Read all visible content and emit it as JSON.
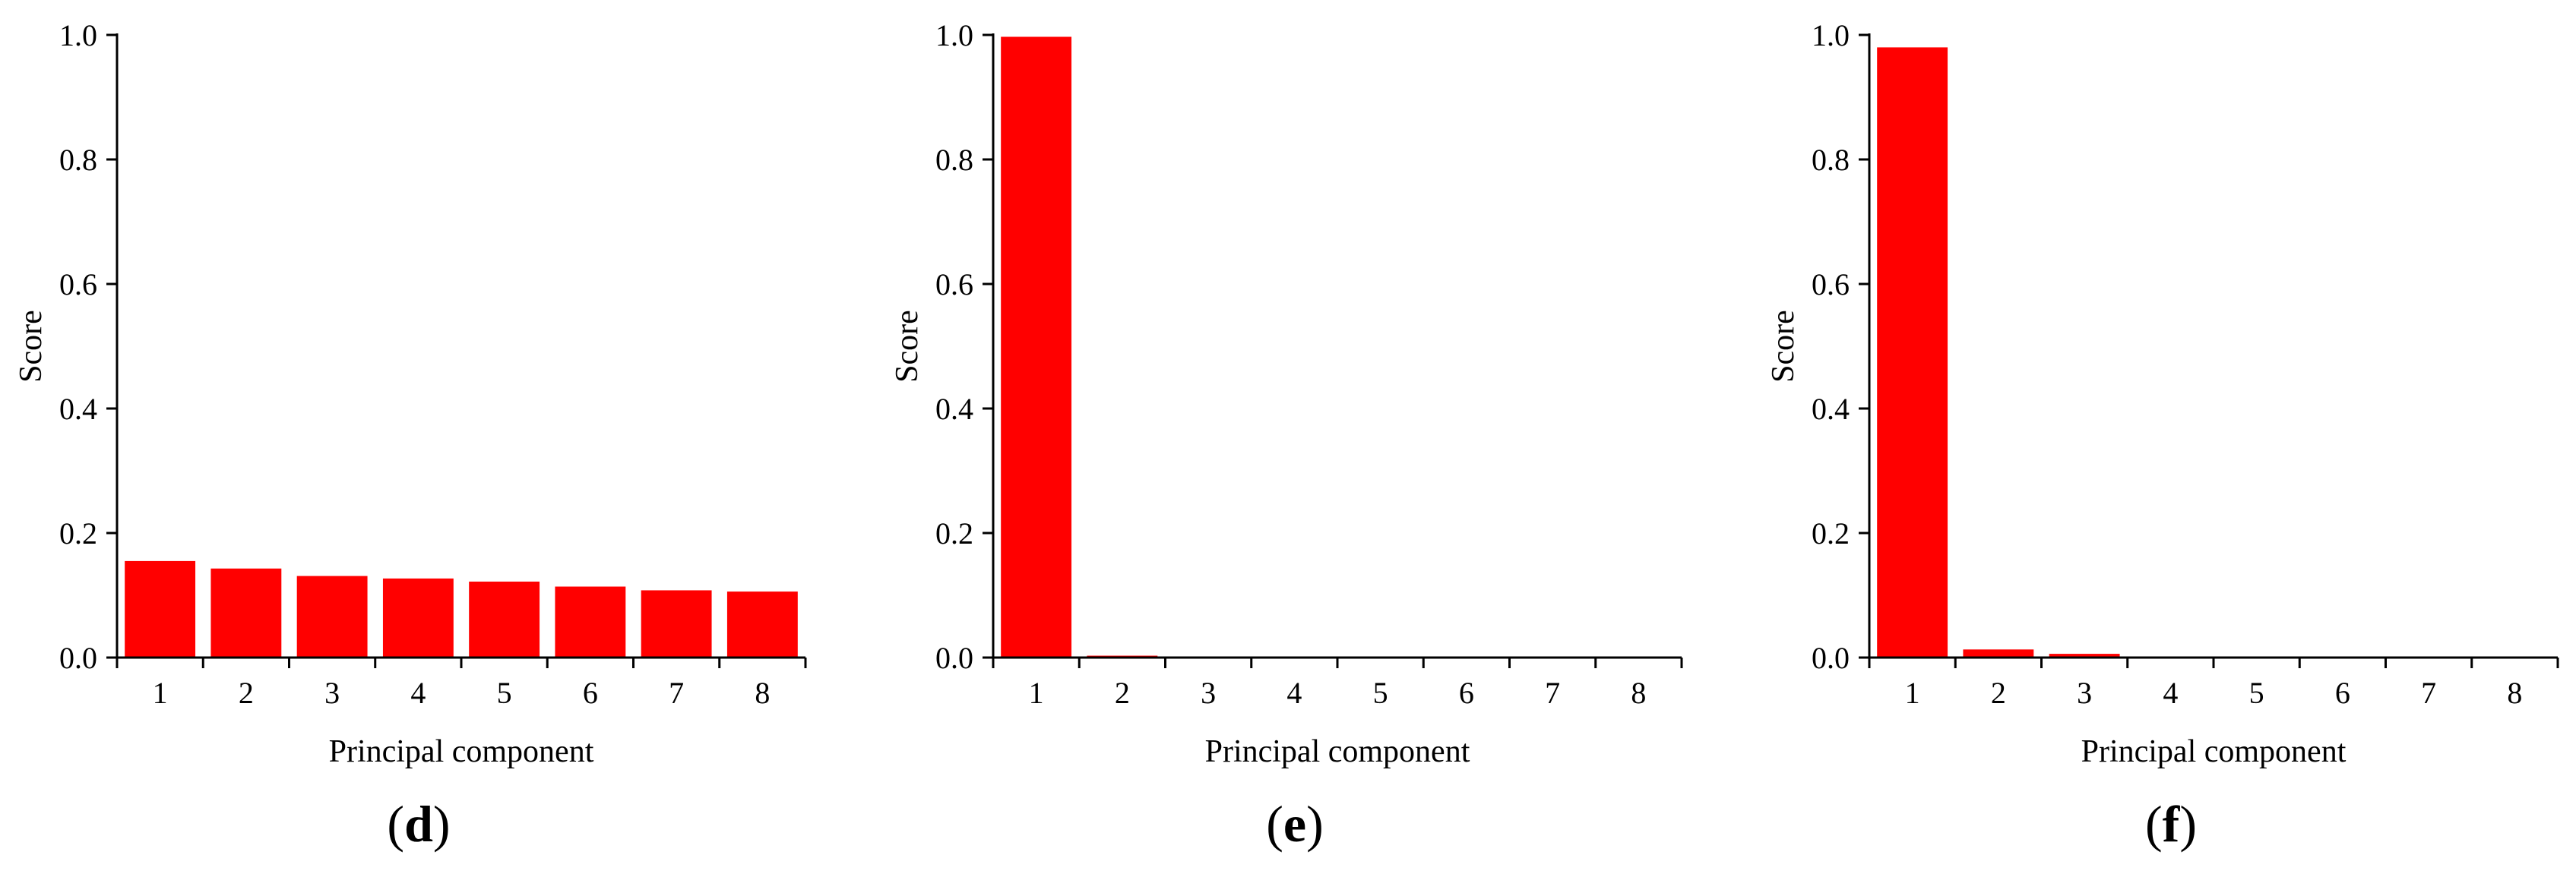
{
  "colors": {
    "bar": "#ff0000",
    "axis": "#000000",
    "background": "#ffffff"
  },
  "chart_data": [
    {
      "type": "bar",
      "panel_label": {
        "open": "(",
        "letter": "d",
        "close": ")"
      },
      "xlabel": "Principal component",
      "ylabel": "Score",
      "ylim": [
        0,
        1.0
      ],
      "yticks": [
        "0.0",
        "0.2",
        "0.4",
        "0.6",
        "0.8",
        "1.0"
      ],
      "categories": [
        "1",
        "2",
        "3",
        "4",
        "5",
        "6",
        "7",
        "8"
      ],
      "values": [
        0.155,
        0.143,
        0.131,
        0.127,
        0.122,
        0.114,
        0.108,
        0.106
      ],
      "grid": false,
      "legend": "none"
    },
    {
      "type": "bar",
      "panel_label": {
        "open": "(",
        "letter": "e",
        "close": ")"
      },
      "xlabel": "Principal component",
      "ylabel": "Score",
      "ylim": [
        0,
        1.0
      ],
      "yticks": [
        "0.0",
        "0.2",
        "0.4",
        "0.6",
        "0.8",
        "1.0"
      ],
      "categories": [
        "1",
        "2",
        "3",
        "4",
        "5",
        "6",
        "7",
        "8"
      ],
      "values": [
        0.997,
        0.003,
        0.0005,
        0.0,
        0.0,
        0.0,
        0.0,
        0.0
      ],
      "grid": false,
      "legend": "none"
    },
    {
      "type": "bar",
      "panel_label": {
        "open": "(",
        "letter": "f",
        "close": ")"
      },
      "xlabel": "Principal component",
      "ylabel": "Score",
      "ylim": [
        0,
        1.0
      ],
      "yticks": [
        "0.0",
        "0.2",
        "0.4",
        "0.6",
        "0.8",
        "1.0"
      ],
      "categories": [
        "1",
        "2",
        "3",
        "4",
        "5",
        "6",
        "7",
        "8"
      ],
      "values": [
        0.98,
        0.013,
        0.006,
        0.001,
        0.0005,
        0.0,
        0.0,
        0.0
      ],
      "grid": false,
      "legend": "none"
    }
  ]
}
